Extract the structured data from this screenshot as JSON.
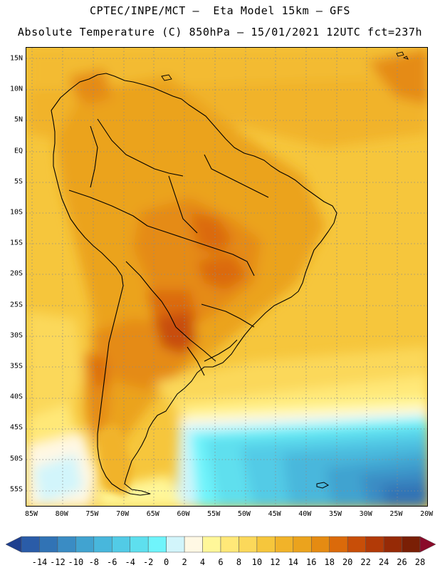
{
  "title": {
    "line1": "CPTEC/INPE/MCT –  Eta Model 15km – GFS",
    "line2": "Absolute Temperature (C) 850hPa – 15/01/2021 12UTC fct=237h"
  },
  "map": {
    "region": "South America",
    "lat_labels": [
      "15N",
      "10N",
      "5N",
      "EQ",
      "5S",
      "10S",
      "15S",
      "20S",
      "25S",
      "30S",
      "35S",
      "40S",
      "45S",
      "50S",
      "55S"
    ],
    "lon_labels": [
      "85W",
      "80W",
      "75W",
      "70W",
      "65W",
      "60W",
      "55W",
      "50W",
      "45W",
      "40W",
      "35W",
      "30W",
      "25W",
      "20W"
    ]
  },
  "colorbar": {
    "labels": [
      "-14",
      "-12",
      "-10",
      "-8",
      "-6",
      "-4",
      "-2",
      "0",
      "2",
      "4",
      "6",
      "8",
      "10",
      "12",
      "14",
      "16",
      "18",
      "20",
      "22",
      "24",
      "26",
      "28"
    ],
    "colors": [
      "#1e3f8f",
      "#2a5ca8",
      "#3173b5",
      "#3a8cc4",
      "#41a3d0",
      "#48b7dc",
      "#52cbe6",
      "#5edfee",
      "#6ff4fb",
      "#d2f5fb",
      "#fff8e4",
      "#fff799",
      "#ffe878",
      "#fbd85a",
      "#f6c63c",
      "#f1b329",
      "#eba31d",
      "#e58b12",
      "#db6a0a",
      "#c84e08",
      "#b23a07",
      "#962a06",
      "#7a1f05",
      "#8a0a2a"
    ]
  }
}
